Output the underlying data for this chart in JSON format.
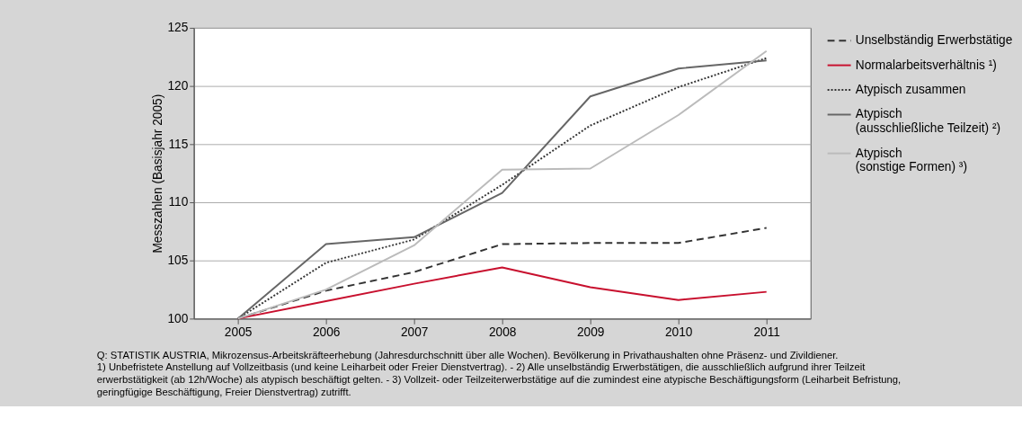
{
  "chart_data": {
    "type": "line",
    "ylabel": "Messzahlen (Basisjahr 2005)",
    "categories": [
      "2005",
      "2006",
      "2007",
      "2008",
      "2009",
      "2010",
      "2011"
    ],
    "ylim": [
      100,
      125
    ],
    "yticks": [
      100,
      105,
      110,
      115,
      120,
      125
    ],
    "grid": "y",
    "legend": "right",
    "marker": "none",
    "series": [
      {
        "name": "Unselbständig Erwerbstätige",
        "color": "#333333",
        "line_style": "dashed",
        "values": [
          100,
          102.4,
          104.0,
          106.4,
          106.5,
          106.5,
          107.8
        ]
      },
      {
        "name": "Normalarbeitsverhältnis ¹)",
        "color": "#c8102e",
        "line_style": "solid",
        "values": [
          100,
          101.5,
          103.0,
          104.4,
          102.7,
          101.6,
          102.3
        ]
      },
      {
        "name": "Atypisch zusammen",
        "color": "#333333",
        "line_style": "dotted",
        "values": [
          100,
          104.8,
          106.8,
          111.5,
          116.6,
          119.9,
          122.4
        ]
      },
      {
        "name": "Atypisch (ausschließliche Teilzeit) ²)",
        "color": "#666666",
        "line_style": "solid",
        "values": [
          100,
          106.4,
          107.0,
          110.8,
          119.1,
          121.5,
          122.2
        ]
      },
      {
        "name": "Atypisch (sonstige Formen) ³)",
        "color": "#bbbbbb",
        "line_style": "solid",
        "values": [
          100,
          102.5,
          106.3,
          112.8,
          112.9,
          117.5,
          123.0
        ]
      }
    ],
    "annotations": [
      "Q: STATISTIK AUSTRIA, Mikrozensus-Arbeitskräfteerhebung (Jahresdurchschnitt über alle Wochen). Bevölkerung in Privathaushalten ohne Präsenz- und Zivildiener.",
      "1) Unbefristete Anstellung auf Vollzeitbasis (und keine Leiharbeit oder Freier Dienstvertrag). - 2) Alle unselbständig Erwerbstätigen, die ausschließlich aufgrund ihrer Teilzeit erwerbstätigkeit (ab 12h/Woche) als atypisch beschäftigt gelten. - 3) Vollzeit- oder Teilzeiterwerbstätige auf die zumindest eine atypische Beschäftigungsform (Leiharbeit Befristung, geringfügige Beschäftigung, Freier Dienstvertrag) zutrifft."
    ]
  }
}
